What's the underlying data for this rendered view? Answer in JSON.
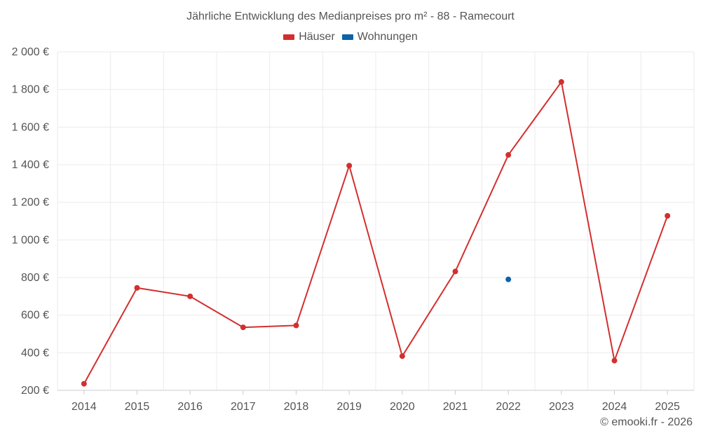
{
  "title": "Jährliche Entwicklung des Medianpreises pro m² - 88 - Ramecourt",
  "footer": "© emooki.fr - 2026",
  "colors": {
    "houses": "#d32f2f",
    "apartments": "#0d62a8",
    "grid": "#ebebeb",
    "axis": "#cccccc"
  },
  "chart_data": {
    "type": "line",
    "title": "Jährliche Entwicklung des Medianpreises pro m² - 88 - Ramecourt",
    "x": [
      2014,
      2015,
      2016,
      2017,
      2018,
      2019,
      2020,
      2021,
      2022,
      2023,
      2024,
      2025
    ],
    "xtick_labels": [
      "2014",
      "2015",
      "2016",
      "2017",
      "2018",
      "2019",
      "2020",
      "2021",
      "2022",
      "2023",
      "2024",
      "2025"
    ],
    "ylim": [
      200,
      2000
    ],
    "yticks": [
      200,
      400,
      600,
      800,
      1000,
      1200,
      1400,
      1600,
      1800,
      2000
    ],
    "ytick_labels": [
      "200 €",
      "400 €",
      "600 €",
      "800 €",
      "1 000 €",
      "1 200 €",
      "1 400 €",
      "1 600 €",
      "1 800 €",
      "2 000 €"
    ],
    "grid": true,
    "legend_position": "top-center",
    "series": [
      {
        "name": "Häuser",
        "color": "#d32f2f",
        "values": [
          235,
          745,
          700,
          535,
          545,
          1395,
          382,
          832,
          1452,
          1840,
          358,
          1128
        ]
      },
      {
        "name": "Wohnungen",
        "color": "#0d62a8",
        "values": [
          null,
          null,
          null,
          null,
          null,
          null,
          null,
          null,
          790,
          null,
          null,
          null
        ]
      }
    ]
  }
}
